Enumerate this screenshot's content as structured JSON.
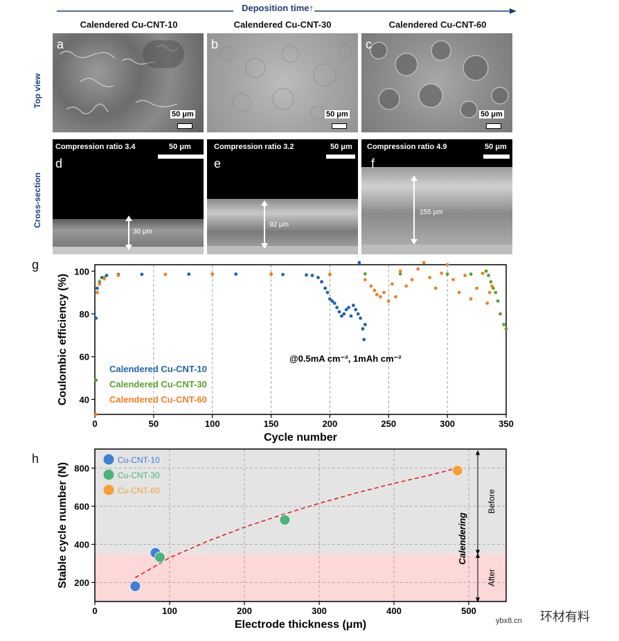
{
  "header": {
    "deposition_label": "Deposition time↑",
    "columns": [
      "Calendered Cu-CNT-10",
      "Calendered Cu-CNT-30",
      "Calendered Cu-CNT-60"
    ]
  },
  "rows": {
    "top_view": "Top view",
    "cross_section": "Cross-section"
  },
  "panels": {
    "a": {
      "letter": "a",
      "scale": "50 μm"
    },
    "b": {
      "letter": "b",
      "scale": "50 μm"
    },
    "c": {
      "letter": "c",
      "scale": "50 μm"
    },
    "d": {
      "letter": "d",
      "scale": "50 μm",
      "caption": "Compression ratio 3.4",
      "thickness": "30 μm"
    },
    "e": {
      "letter": "e",
      "scale": "50 μm",
      "caption": "Compression ratio 3.2",
      "thickness": "92 μm"
    },
    "f": {
      "letter": "f",
      "scale": "50 μm",
      "caption": "Compression ratio 4.9",
      "thickness": "155 μm"
    }
  },
  "panel_g_letter": "g",
  "panel_h_letter": "h",
  "watermark": {
    "text": "环材有料",
    "site": "ybx8.cn"
  },
  "chart_data": [
    {
      "type": "scatter",
      "panel": "g",
      "xlabel": "Cycle number",
      "ylabel": "Coulombic efficiency (%)",
      "xlim": [
        0,
        350
      ],
      "ylim": [
        33,
        103
      ],
      "xticks": [
        0,
        50,
        100,
        150,
        200,
        250,
        300,
        350
      ],
      "yticks": [
        40,
        60,
        80,
        100
      ],
      "grid": "vertical dashed",
      "annotation": "@0.5mA cm⁻², 1mAh cm⁻²",
      "legend_position": "bottom-left",
      "series": [
        {
          "name": "Calendered Cu-CNT-10",
          "color": "#1f64a8",
          "x": [
            1,
            2,
            4,
            6,
            10,
            20,
            40,
            80,
            120,
            160,
            180,
            185,
            190,
            193,
            196,
            198,
            200,
            202,
            204,
            206,
            208,
            210,
            212,
            214,
            216,
            218,
            220,
            222,
            224,
            225,
            226,
            228,
            229,
            230
          ],
          "y": [
            78,
            92,
            95,
            97,
            98,
            98.5,
            98.5,
            98.6,
            98.6,
            98.4,
            98.2,
            98,
            97,
            95,
            92,
            90,
            87,
            86,
            85,
            83,
            81,
            79,
            80,
            82,
            83,
            79,
            84,
            82,
            80,
            104,
            78,
            73,
            68,
            75
          ]
        },
        {
          "name": "Calendered Cu-CNT-30",
          "color": "#5aa02c",
          "x": [
            1,
            2,
            4,
            8,
            20,
            60,
            100,
            150,
            200,
            230,
            260,
            300,
            320,
            330,
            333,
            335,
            337,
            339,
            341,
            343,
            345,
            348,
            350
          ],
          "y": [
            49,
            90,
            95,
            97,
            98.2,
            98.5,
            98.6,
            98.6,
            98.5,
            98.7,
            98.7,
            98.6,
            98.6,
            99,
            100,
            98,
            95,
            92,
            90,
            86,
            80,
            75,
            73
          ]
        },
        {
          "name": "Calendered Cu-CNT-60",
          "color": "#f07f24",
          "x": [
            1,
            2,
            4,
            8,
            20,
            60,
            100,
            150,
            200,
            230,
            235,
            238,
            240,
            243,
            246,
            250,
            253,
            256,
            260,
            265,
            270,
            275,
            280,
            285,
            290,
            295,
            300,
            305,
            310,
            315,
            320,
            325,
            330,
            334,
            336,
            338
          ],
          "y": [
            33,
            90,
            94,
            96.5,
            98,
            98.5,
            98.6,
            98.6,
            98.5,
            96,
            93,
            91,
            89,
            88,
            90,
            86,
            94,
            88,
            100,
            93,
            96,
            101,
            104,
            97,
            92,
            99,
            103,
            96,
            90,
            98,
            87,
            92,
            99,
            85,
            90,
            93
          ]
        }
      ]
    },
    {
      "type": "scatter",
      "panel": "h",
      "xlabel": "Electrode thickness (μm)",
      "ylabel": "Stable cycle number (N)",
      "xlim": [
        0,
        550
      ],
      "ylim": [
        100,
        900
      ],
      "xticks": [
        0,
        100,
        200,
        300,
        400,
        500
      ],
      "yticks": [
        200,
        400,
        600,
        800
      ],
      "grid": "dashed",
      "regions": [
        {
          "label": "Before",
          "from": 350,
          "to": 900,
          "color": "#e4e4e4"
        },
        {
          "label": "After",
          "from": 100,
          "to": 350,
          "color": "#fdd8d8"
        }
      ],
      "side_label": "Calendering",
      "legend_position": "top-left",
      "series": [
        {
          "name": "Cu-CNT-10",
          "color": "#3f7fd6",
          "x": [
            54,
            81
          ],
          "y": [
            180,
            355
          ]
        },
        {
          "name": "Cu-CNT-30",
          "color": "#4db37a",
          "x": [
            87,
            254
          ],
          "y": [
            332,
            528
          ]
        },
        {
          "name": "Cu-CNT-60",
          "color": "#f5a036",
          "x": [
            485
          ],
          "y": [
            787
          ]
        }
      ],
      "fit": {
        "color": "#e02020",
        "x": [
          54,
          100,
          150,
          200,
          250,
          300,
          350,
          400,
          450,
          485
        ],
        "y": [
          225,
          330,
          415,
          490,
          555,
          615,
          670,
          720,
          765,
          800
        ]
      }
    }
  ]
}
